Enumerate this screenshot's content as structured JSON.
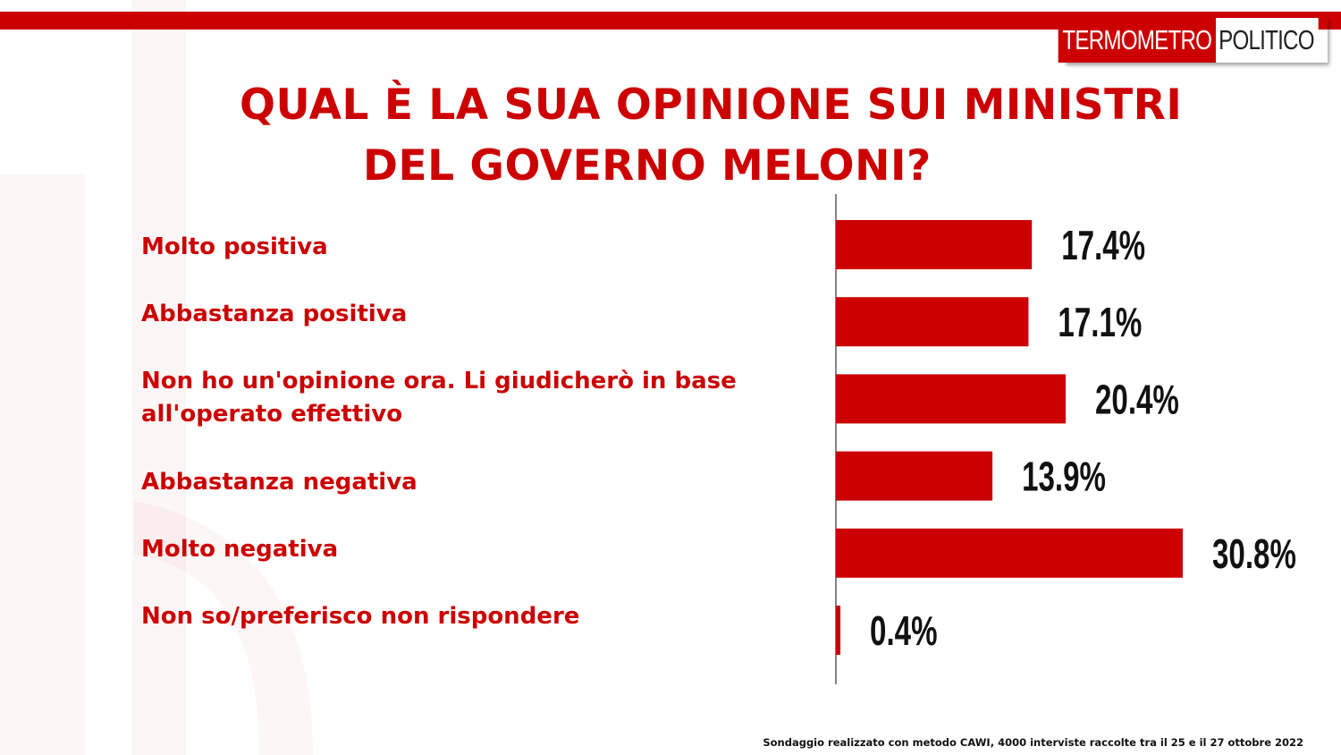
{
  "logo": {
    "part1": "TERMOMETRO",
    "part2": "POLITICO"
  },
  "title_line1": "QUAL È LA SUA OPINIONE SUI MINISTRI",
  "title_line2": "DEL GOVERNO MELONI?",
  "colors": {
    "accent": "#cc0000",
    "text": "#111111"
  },
  "footnote": "Sondaggio realizzato con metodo CAWI, 4000 interviste raccolte tra il 25 e il 27 ottobre 2022",
  "chart_data": {
    "type": "bar",
    "orientation": "horizontal",
    "categories": [
      "Molto positiva",
      "Abbastanza positiva",
      "Non ho un'opinione ora. Li giudicherò in base all'operato effettivo",
      "Abbastanza negativa",
      "Molto negativa",
      "Non so/preferisco non rispondere"
    ],
    "values": [
      17.4,
      17.1,
      20.4,
      13.9,
      30.8,
      0.4
    ],
    "value_labels": [
      "17.4%",
      "17.1%",
      "20.4%",
      "13.9%",
      "30.8%",
      "0.4%"
    ],
    "xlim": [
      0,
      30.8
    ],
    "grid": false,
    "legend": false
  }
}
